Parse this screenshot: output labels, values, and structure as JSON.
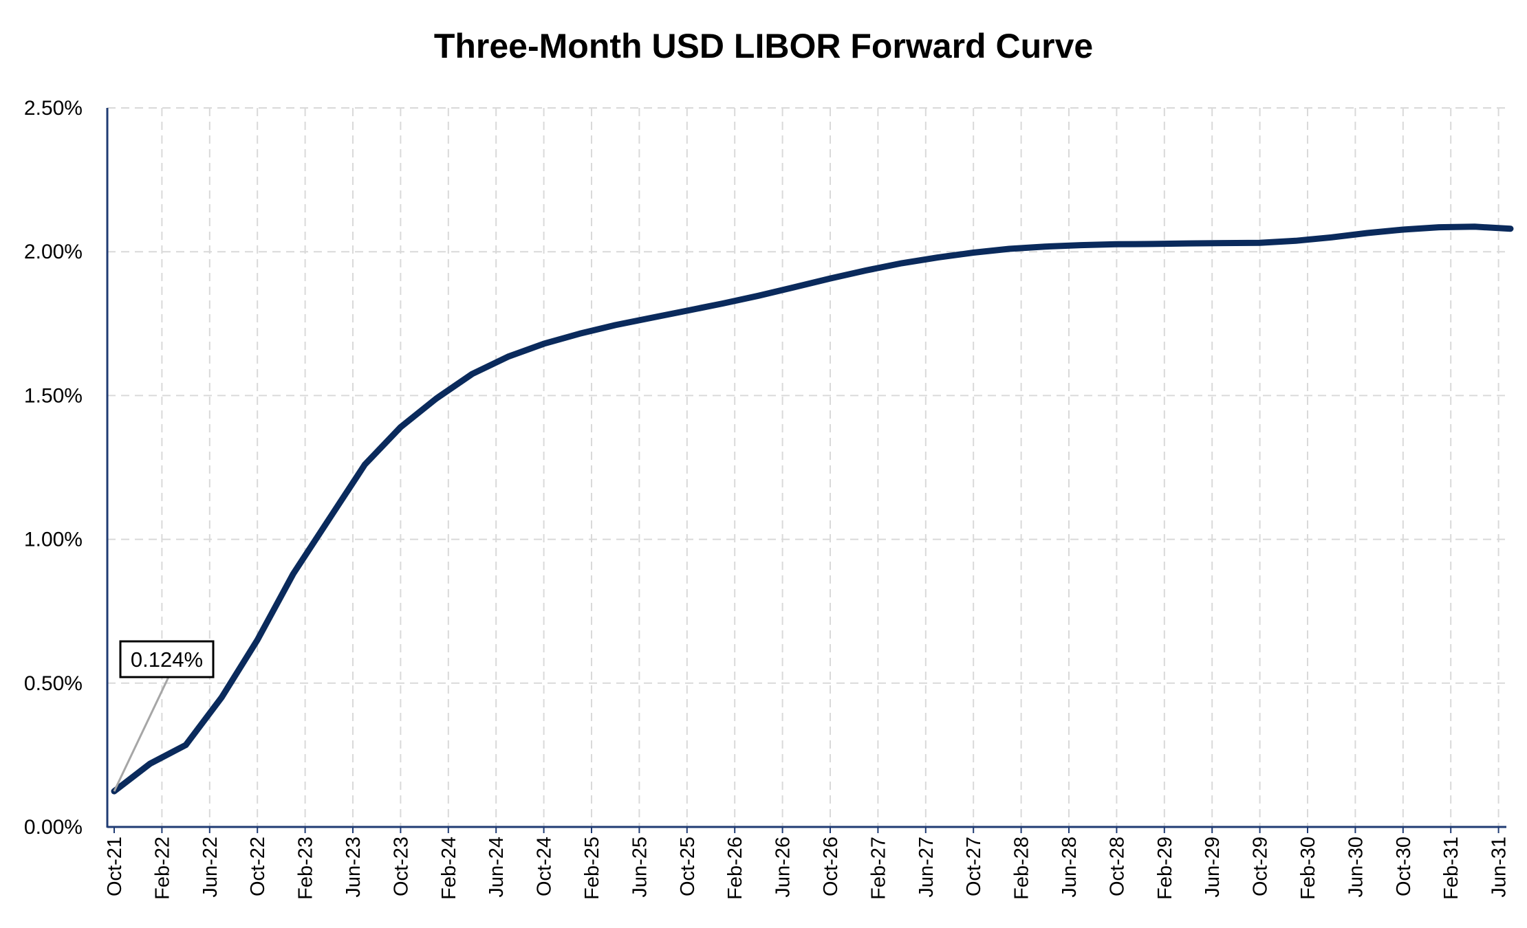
{
  "chart_data": {
    "type": "line",
    "title": "Three-Month USD LIBOR Forward Curve",
    "xlabel": "",
    "ylabel": "",
    "y_tick_labels": [
      "0.00%",
      "0.50%",
      "1.00%",
      "1.50%",
      "2.00%",
      "2.50%"
    ],
    "y_tick_values": [
      0,
      0.5,
      1.0,
      1.5,
      2.0,
      2.5
    ],
    "ylim": [
      0,
      2.5
    ],
    "x_tick_labels": [
      "Oct-21",
      "Feb-22",
      "Jun-22",
      "Oct-22",
      "Feb-23",
      "Jun-23",
      "Oct-23",
      "Feb-24",
      "Jun-24",
      "Oct-24",
      "Feb-25",
      "Jun-25",
      "Oct-25",
      "Feb-26",
      "Jun-26",
      "Oct-26",
      "Feb-27",
      "Jun-27",
      "Oct-27",
      "Feb-28",
      "Jun-28",
      "Oct-28",
      "Feb-29",
      "Jun-29",
      "Oct-29",
      "Feb-30",
      "Jun-30",
      "Oct-30",
      "Feb-31",
      "Jun-31"
    ],
    "grid": true,
    "line_color": "#0a2a5c",
    "series": [
      {
        "x": [
          "Oct-21",
          "Jan-22",
          "Apr-22",
          "Jul-22",
          "Oct-22",
          "Jan-23",
          "Apr-23",
          "Jul-23",
          "Oct-23",
          "Jan-24",
          "Apr-24",
          "Jul-24",
          "Oct-24",
          "Jan-25",
          "Apr-25",
          "Jul-25",
          "Oct-25",
          "Jan-26",
          "Apr-26",
          "Jul-26",
          "Oct-26",
          "Jan-27",
          "Apr-27",
          "Jul-27",
          "Oct-27",
          "Jan-28",
          "Apr-28",
          "Jul-28",
          "Oct-28",
          "Jan-29",
          "Apr-29",
          "Jul-29",
          "Oct-29",
          "Jan-30",
          "Apr-30",
          "Jul-30",
          "Oct-30",
          "Jan-31",
          "Apr-31",
          "Jul-31"
        ],
        "values": [
          0.124,
          0.22,
          0.285,
          0.45,
          0.65,
          0.88,
          1.07,
          1.26,
          1.39,
          1.49,
          1.575,
          1.635,
          1.68,
          1.715,
          1.745,
          1.77,
          1.795,
          1.82,
          1.847,
          1.877,
          1.907,
          1.935,
          1.96,
          1.98,
          1.997,
          2.01,
          2.018,
          2.023,
          2.026,
          2.027,
          2.029,
          2.03,
          2.031,
          2.038,
          2.05,
          2.065,
          2.077,
          2.085,
          2.087,
          2.08
        ]
      }
    ],
    "annotations": [
      {
        "text": "0.124%",
        "x": "Oct-21",
        "y": 0.124
      }
    ]
  }
}
